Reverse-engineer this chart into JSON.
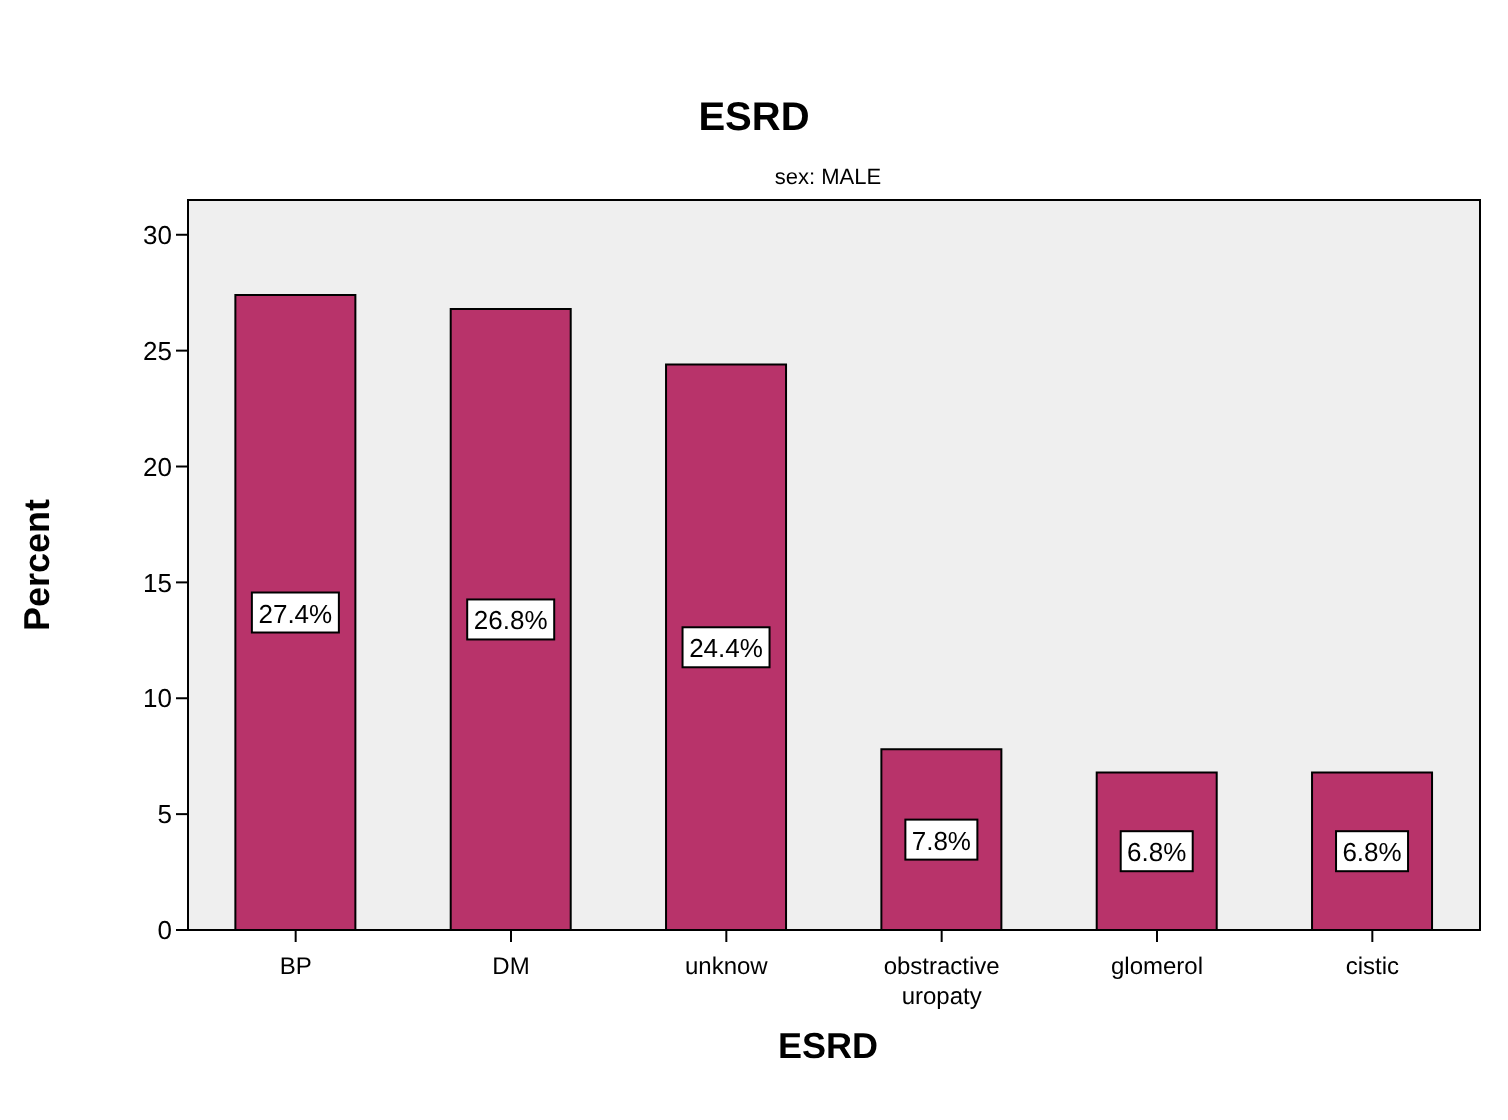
{
  "chart_data": {
    "type": "bar",
    "title": "ESRD",
    "subtitle": "sex: MALE",
    "xlabel": "ESRD",
    "ylabel": "Percent",
    "categories": [
      "BP",
      "DM",
      "unknow",
      "obstractive uropaty",
      "glomerol",
      "cistic"
    ],
    "values": [
      27.4,
      26.8,
      24.4,
      7.8,
      6.8,
      6.8
    ],
    "value_labels": [
      "27.4%",
      "26.8%",
      "24.4%",
      "7.8%",
      "6.8%",
      "6.8%"
    ],
    "color": "#b8336a",
    "ylim": [
      0,
      31.5
    ],
    "yticks": [
      0,
      5,
      10,
      15,
      20,
      25,
      30
    ]
  }
}
